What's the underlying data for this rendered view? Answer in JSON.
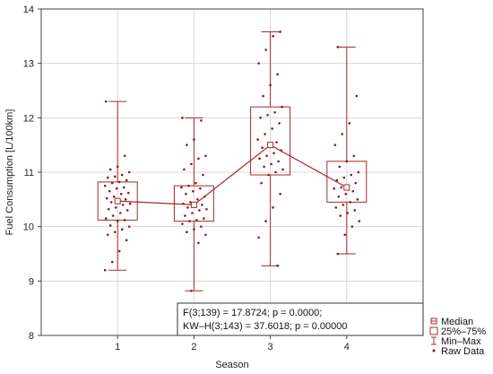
{
  "chart_data": {
    "type": "boxplot",
    "title": "",
    "xlabel": "Season",
    "ylabel": "Fuel Consumption [L/100km]",
    "categories": [
      "1",
      "2",
      "3",
      "4"
    ],
    "ylim": [
      8,
      14
    ],
    "yticks": [
      "8",
      "9",
      "10",
      "11",
      "12",
      "13",
      "14"
    ],
    "grid": true,
    "legend_position": "bottom-right",
    "colors": {
      "marks": "#a52a2a",
      "points": "#8b1a1a"
    },
    "boxes": [
      {
        "category": "1",
        "min": 9.2,
        "q1": 10.12,
        "median": 10.47,
        "q3": 10.82,
        "max": 12.3
      },
      {
        "category": "2",
        "min": 8.82,
        "q1": 10.1,
        "median": 10.4,
        "q3": 10.75,
        "max": 12.0
      },
      {
        "category": "3",
        "min": 9.28,
        "q1": 10.95,
        "median": 11.5,
        "q3": 12.2,
        "max": 13.58
      },
      {
        "category": "4",
        "min": 9.5,
        "q1": 10.45,
        "median": 10.72,
        "q3": 11.2,
        "max": 13.3
      }
    ],
    "raw_data": [
      {
        "category": "1",
        "values": [
          9.2,
          9.35,
          9.55,
          9.75,
          9.85,
          9.9,
          9.95,
          10.0,
          10.02,
          10.1,
          10.12,
          10.15,
          10.2,
          10.25,
          10.3,
          10.32,
          10.35,
          10.4,
          10.42,
          10.45,
          10.47,
          10.5,
          10.52,
          10.55,
          10.6,
          10.62,
          10.65,
          10.7,
          10.72,
          10.75,
          10.8,
          10.82,
          10.85,
          10.9,
          10.92,
          10.95,
          11.0,
          11.05,
          11.1,
          11.3,
          12.3
        ]
      },
      {
        "category": "2",
        "values": [
          8.82,
          9.7,
          9.85,
          9.9,
          9.95,
          10.0,
          10.05,
          10.1,
          10.12,
          10.15,
          10.2,
          10.25,
          10.3,
          10.32,
          10.35,
          10.38,
          10.4,
          10.42,
          10.45,
          10.5,
          10.55,
          10.6,
          10.65,
          10.7,
          10.72,
          10.75,
          10.8,
          10.95,
          11.05,
          11.15,
          11.25,
          11.3,
          11.5,
          11.6,
          11.95,
          12.0
        ]
      },
      {
        "category": "3",
        "values": [
          9.28,
          9.8,
          10.1,
          10.35,
          10.6,
          10.8,
          10.95,
          11.0,
          11.05,
          11.1,
          11.15,
          11.2,
          11.25,
          11.3,
          11.35,
          11.4,
          11.45,
          11.5,
          11.55,
          11.6,
          11.7,
          11.8,
          11.9,
          12.0,
          12.05,
          12.1,
          12.2,
          12.4,
          12.6,
          12.8,
          13.0,
          13.25,
          13.5,
          13.58
        ]
      },
      {
        "category": "4",
        "values": [
          9.5,
          9.85,
          10.0,
          10.1,
          10.2,
          10.25,
          10.3,
          10.35,
          10.4,
          10.45,
          10.5,
          10.55,
          10.6,
          10.65,
          10.7,
          10.72,
          10.75,
          10.8,
          10.85,
          10.9,
          10.95,
          11.0,
          11.1,
          11.2,
          11.3,
          11.5,
          11.7,
          11.9,
          12.4,
          13.3
        ]
      }
    ],
    "mean_line": {
      "series": "median",
      "values": [
        10.47,
        10.4,
        11.5,
        10.72
      ]
    },
    "annotation": {
      "line1": "F(3;139) = 17.8724; p = 0.0000;",
      "line2": "KW–H(3;143) = 37.6018; p = 0.00000"
    },
    "legend": [
      {
        "label": "Median",
        "symbol": "square"
      },
      {
        "label": "25%–75%",
        "symbol": "box"
      },
      {
        "label": "Min–Max",
        "symbol": "whisker"
      },
      {
        "label": "Raw Data",
        "symbol": "dot"
      }
    ]
  }
}
